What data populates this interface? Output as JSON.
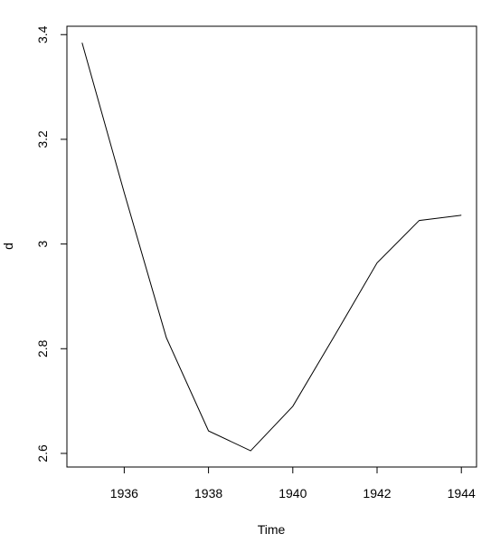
{
  "chart_data": {
    "type": "line",
    "x": [
      1935,
      1936,
      1937,
      1938,
      1939,
      1940,
      1941,
      1942,
      1943,
      1944
    ],
    "values": [
      3.3845,
      3.098,
      2.821,
      2.643,
      2.605,
      2.69,
      2.826,
      2.964,
      3.045,
      3.055
    ],
    "color": "#000000",
    "x_label": "Time",
    "y_label": "d",
    "xlim": [
      1934.64,
      1944.36
    ],
    "ylim": [
      2.574,
      3.416
    ],
    "xticks": [
      1936,
      1938,
      1940,
      1942,
      1944
    ],
    "yticks": [
      2.6,
      2.8,
      3.0,
      3.2,
      3.4
    ],
    "grid": false
  }
}
